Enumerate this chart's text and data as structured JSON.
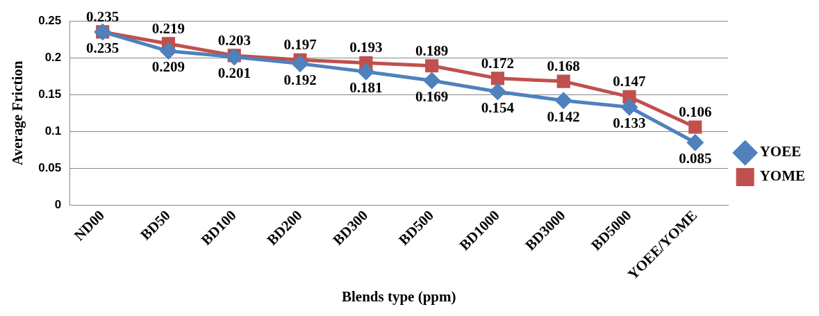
{
  "chart_data": {
    "type": "line",
    "xlabel": "Blends type (ppm)",
    "ylabel": "Average Friction",
    "categories": [
      "ND00",
      "BD50",
      "BD100",
      "BD200",
      "BD300",
      "BD500",
      "BD1000",
      "BD3000",
      "BD5000",
      "YOEE/YOME"
    ],
    "series": [
      {
        "name": "YOEE",
        "color": "#4f81bd",
        "marker": "diamond",
        "values": [
          0.235,
          0.209,
          0.201,
          0.192,
          0.181,
          0.169,
          0.154,
          0.142,
          0.133,
          0.085
        ]
      },
      {
        "name": "YOME",
        "color": "#c0504d",
        "marker": "square",
        "values": [
          0.235,
          0.219,
          0.203,
          0.197,
          0.193,
          0.189,
          0.172,
          0.168,
          0.147,
          0.106
        ]
      }
    ],
    "ylim": [
      0,
      0.25
    ],
    "yticks": [
      0,
      0.05,
      0.1,
      0.15,
      0.2,
      0.25
    ],
    "grid": "y",
    "legend": "right",
    "data_labels": true
  }
}
